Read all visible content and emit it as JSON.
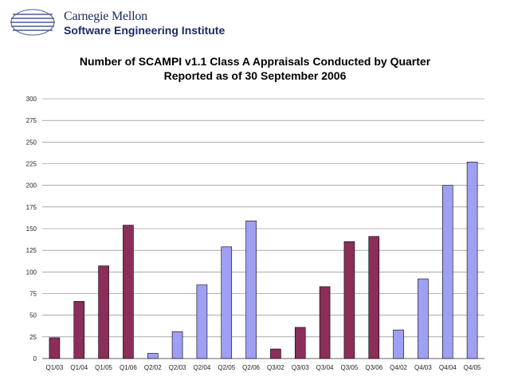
{
  "header": {
    "org_line1": "Carnegie Mellon",
    "org_line2": "Software Engineering Institute"
  },
  "colors": {
    "series_q1_q3": "#8b2e59",
    "series_q2_q4": "#9f9ff3",
    "grid": "#777777"
  },
  "chart_data": {
    "type": "bar",
    "title": "Number of SCAMPI v1.1 Class A Appraisals Conducted by Quarter",
    "subtitle": "Reported as of 30 September 2006",
    "xlabel": "",
    "ylabel": "",
    "ylim": [
      0,
      300
    ],
    "yticks": [
      0,
      25,
      50,
      75,
      100,
      125,
      150,
      175,
      200,
      225,
      250,
      275,
      300
    ],
    "grid": true,
    "legend": "none",
    "categories": [
      "Q1/03",
      "Q1/04",
      "Q1/05",
      "Q1/06",
      "Q2/02",
      "Q2/03",
      "Q2/04",
      "Q2/05",
      "Q2/06",
      "Q3/02",
      "Q3/03",
      "Q3/04",
      "Q3/05",
      "Q3/06",
      "Q4/02",
      "Q4/03",
      "Q4/04",
      "Q4/05"
    ],
    "values": [
      24,
      66,
      107,
      154,
      6,
      31,
      85,
      129,
      159,
      11,
      36,
      83,
      135,
      141,
      33,
      92,
      200,
      227
    ],
    "bar_colors": [
      "#8b2e59",
      "#8b2e59",
      "#8b2e59",
      "#8b2e59",
      "#9f9ff3",
      "#9f9ff3",
      "#9f9ff3",
      "#9f9ff3",
      "#9f9ff3",
      "#8b2e59",
      "#8b2e59",
      "#8b2e59",
      "#8b2e59",
      "#8b2e59",
      "#9f9ff3",
      "#9f9ff3",
      "#9f9ff3",
      "#9f9ff3"
    ]
  }
}
